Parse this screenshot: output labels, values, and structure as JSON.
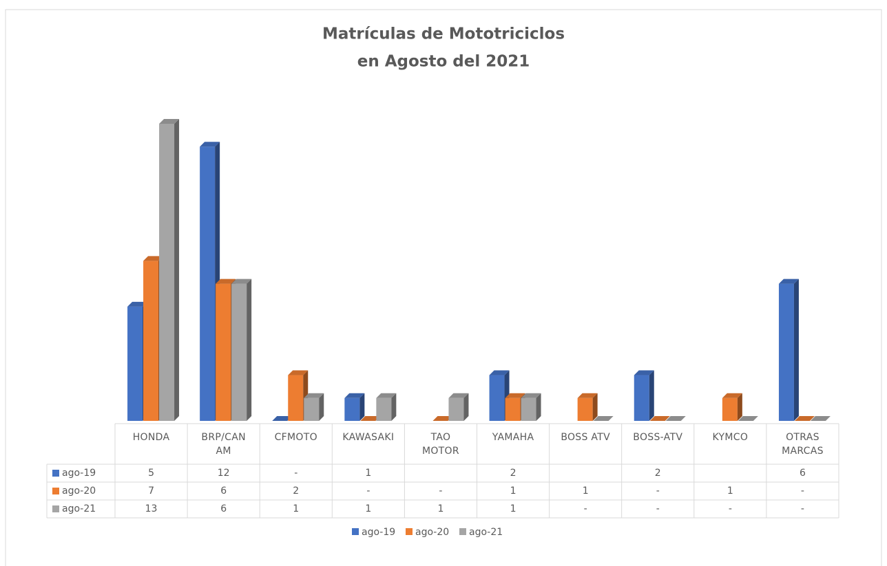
{
  "chart_data": {
    "type": "bar3d",
    "title": [
      "Matrículas de Mototriciclos",
      "en Agosto del 2021"
    ],
    "categories": [
      "HONDA",
      "BRP/CAN AM",
      "CFMOTO",
      "KAWASAKI",
      "TAO MOTOR",
      "YAMAHA",
      "BOSS ATV",
      "BOSS-ATV",
      "KYMCO",
      "OTRAS MARCAS"
    ],
    "series": [
      {
        "name": "ago-19",
        "color": "#4472c4",
        "values": [
          5,
          12,
          0,
          1,
          null,
          2,
          null,
          2,
          null,
          6
        ],
        "value_labels": [
          "5",
          "12",
          "-",
          "1",
          null,
          "2",
          null,
          "2",
          null,
          "6"
        ]
      },
      {
        "name": "ago-20",
        "color": "#ed7d31",
        "values": [
          7,
          6,
          2,
          0,
          0,
          1,
          1,
          0,
          1,
          0
        ],
        "value_labels": [
          "7",
          "6",
          "2",
          "-",
          "-",
          "1",
          "1",
          "-",
          "1",
          "-"
        ]
      },
      {
        "name": "ago-21",
        "color": "#a5a5a5",
        "values": [
          13,
          6,
          1,
          1,
          1,
          1,
          0,
          0,
          0,
          0
        ],
        "value_labels": [
          "13",
          "6",
          "1",
          "1",
          "1",
          "1",
          "-",
          "-",
          "-",
          "-"
        ]
      }
    ]
  }
}
